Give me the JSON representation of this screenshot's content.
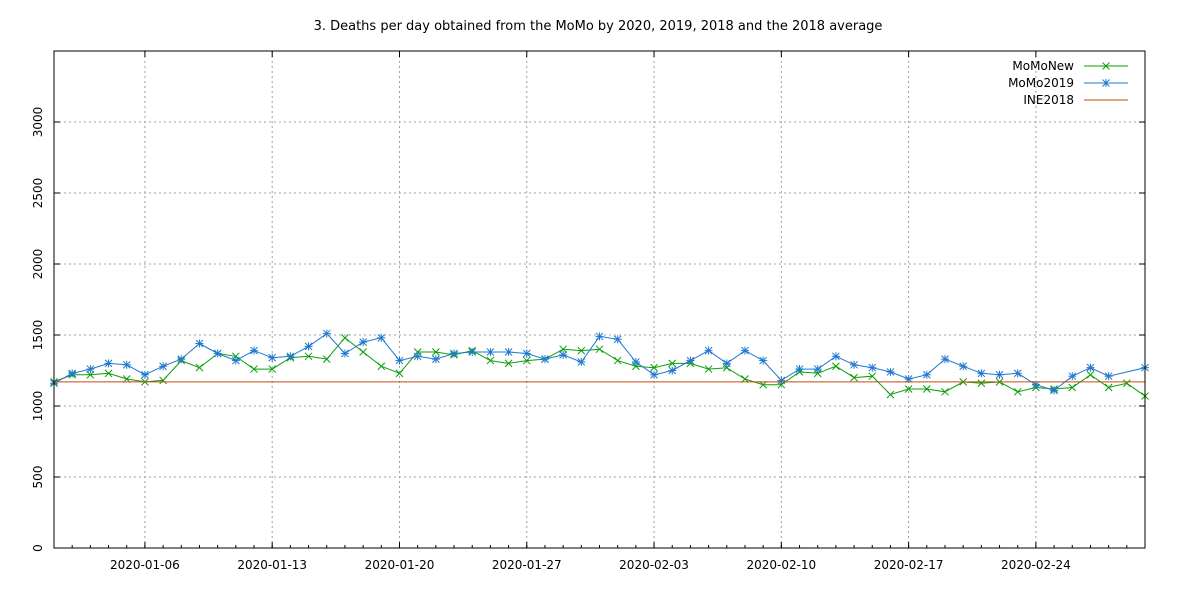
{
  "chart_data": {
    "type": "line",
    "title": "3. Deaths per day obtained from the MoMo by 2020, 2019, 2018 and the 2018 average",
    "xlabel": "",
    "ylabel": "",
    "x_start": "2020-01-01",
    "x_end": "2020-03-01",
    "xlim": [
      "2020-01-01",
      "2020-03-01"
    ],
    "ylim": [
      0,
      3500
    ],
    "y_ticks": [
      0,
      500,
      1000,
      1500,
      2000,
      2500,
      3000
    ],
    "x_ticks": [
      "2020-01-06",
      "2020-01-13",
      "2020-01-20",
      "2020-01-27",
      "2020-02-03",
      "2020-02-10",
      "2020-02-17",
      "2020-02-24"
    ],
    "grid": true,
    "legend_position": "top-right",
    "series": [
      {
        "name": "MoMoNew",
        "color": "#0a9f0a",
        "marker": "x",
        "values": [
          1170,
          1220,
          1220,
          1230,
          1190,
          1170,
          1180,
          1320,
          1270,
          1370,
          1350,
          1260,
          1260,
          1340,
          1350,
          1330,
          1480,
          1380,
          1280,
          1230,
          1380,
          1380,
          1360,
          1390,
          1320,
          1300,
          1320,
          1330,
          1400,
          1390,
          1400,
          1320,
          1280,
          1270,
          1300,
          1300,
          1260,
          1270,
          1190,
          1150,
          1150,
          1240,
          1230,
          1280,
          1200,
          1210,
          1080,
          1120,
          1120,
          1100,
          1170,
          1160,
          1170,
          1100,
          1130,
          1120,
          1130,
          1220,
          1130,
          1160,
          1070
        ]
      },
      {
        "name": "MoMo2019",
        "color": "#1f78d0",
        "marker": "*",
        "values": [
          1160,
          1230,
          1260,
          1300,
          1290,
          1220,
          1280,
          1330,
          1440,
          1370,
          1320,
          1390,
          1340,
          1350,
          1420,
          1510,
          1370,
          1450,
          1480,
          1320,
          1350,
          1330,
          1370,
          1380,
          1380,
          1380,
          1370,
          1330,
          1360,
          1310,
          1490,
          1470,
          1310,
          1220,
          1250,
          1320,
          1390,
          1300,
          1390,
          1320,
          1180,
          1260,
          1260,
          1350,
          1290,
          1270,
          1240,
          1190,
          1220,
          1330,
          1280,
          1230,
          1220,
          1230,
          1150,
          1110,
          1210,
          1270,
          1210,
          null,
          1270
        ]
      },
      {
        "name": "INE2018",
        "color": "#c84a0a",
        "marker": "none",
        "values": [
          1170,
          1170
        ]
      }
    ]
  }
}
